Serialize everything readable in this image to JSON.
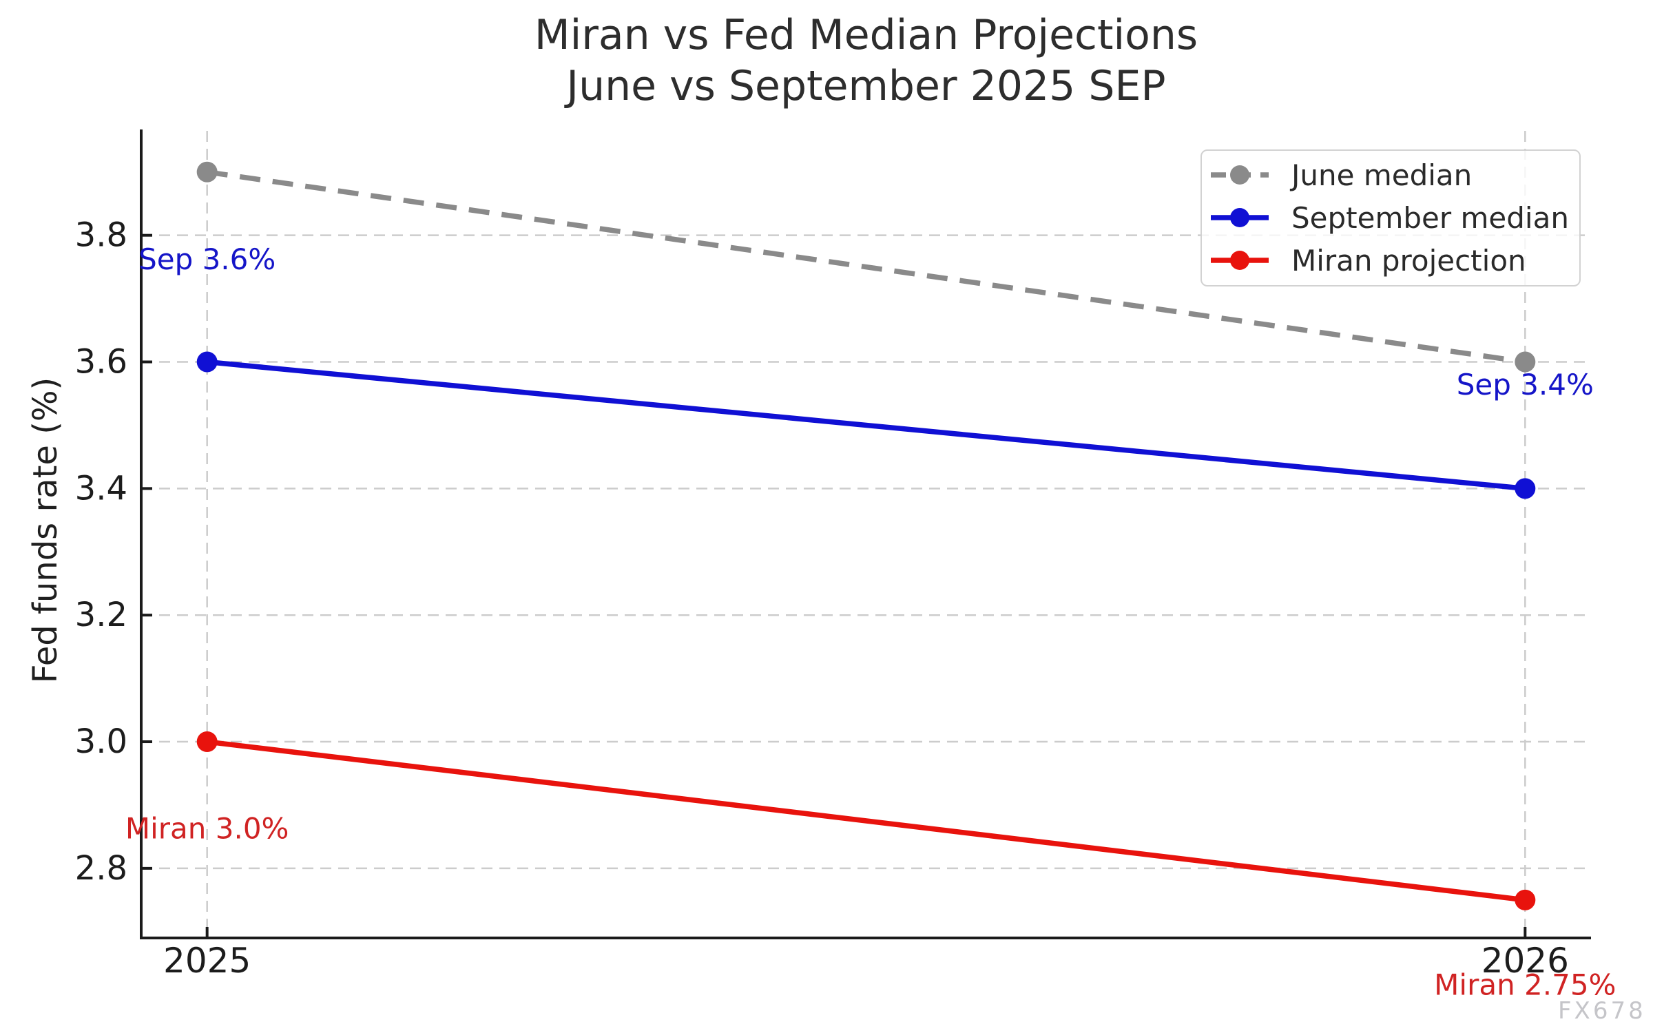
{
  "figure": {
    "title_line1": "Miran vs Fed Median Projections",
    "title_line2": "June vs September 2025 SEP",
    "ylabel": "Fed funds rate (%)",
    "watermark": "FX678"
  },
  "colors": {
    "june_gray": "#8a8a8a",
    "september_blue": "#1010d4",
    "miran_red": "#e8130d",
    "annotation_blue": "#1515c8",
    "annotation_red": "#d02323",
    "gridline": "#cccccc",
    "axis": "#1a1a1a",
    "legend_border": "#d2d2d2",
    "watermark_gray": "#c5c5c9"
  },
  "legend": {
    "items": [
      {
        "label": "June median",
        "color": "#8a8a8a",
        "dashed": true
      },
      {
        "label": "September median",
        "color": "#1010d4",
        "dashed": false
      },
      {
        "label": "Miran projection",
        "color": "#e8130d",
        "dashed": false
      }
    ]
  },
  "chart_data": {
    "type": "line",
    "title": "Miran vs Fed Median Projections\nJune vs September 2025 SEP",
    "xlabel": "",
    "ylabel": "Fed funds rate (%)",
    "x": [
      2025,
      2026
    ],
    "xticklabels": [
      "2025",
      "2026"
    ],
    "series": [
      {
        "name": "June median",
        "values": [
          3.9,
          3.6
        ],
        "color": "#8a8a8a",
        "style": "dashed"
      },
      {
        "name": "September median",
        "values": [
          3.6,
          3.4
        ],
        "color": "#1010d4",
        "style": "solid"
      },
      {
        "name": "Miran projection",
        "values": [
          3.0,
          2.75
        ],
        "color": "#e8130d",
        "style": "solid"
      }
    ],
    "yticks": [
      2.8,
      3.0,
      3.2,
      3.4,
      3.6,
      3.8
    ],
    "ylim": [
      2.69,
      3.965
    ],
    "xlim": [
      2024.95,
      2026.05
    ],
    "grid": true,
    "legend_position": "upper right",
    "annotations": [
      {
        "text": "Sep 3.6%",
        "x": 2025,
        "y": 3.762,
        "color": "#1515c8",
        "anchor": "middle"
      },
      {
        "text": "Sep 3.4%",
        "x": 2026,
        "y": 3.564,
        "color": "#1515c8",
        "anchor": "middle"
      },
      {
        "text": "Miran 3.0%",
        "x": 2025,
        "y": 2.863,
        "color": "#d02323",
        "anchor": "middle"
      },
      {
        "text": "Miran 2.75%",
        "x": 2026,
        "y": 2.616,
        "color": "#d02323",
        "anchor": "middle"
      }
    ]
  }
}
